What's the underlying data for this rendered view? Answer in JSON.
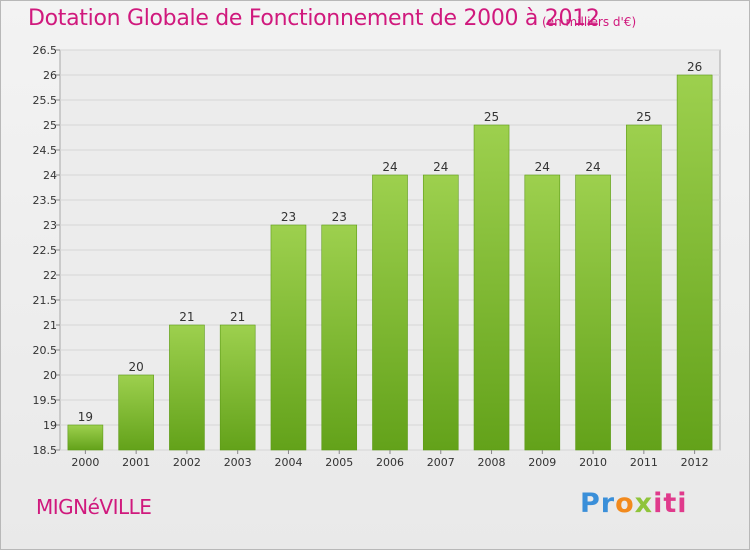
{
  "header": {
    "title": "Dotation Globale de Fonctionnement de 2000 à 2012",
    "unit": "(en milliers d'€)"
  },
  "footer": {
    "town": "MIGNéVILLE",
    "logo": [
      "Pr",
      "o",
      "x",
      "iti"
    ]
  },
  "colors": {
    "bar_top": "#9dd04e",
    "bar_bottom": "#63a21a",
    "title": "#d0197d"
  },
  "chart_data": {
    "type": "bar",
    "categories": [
      "2000",
      "2001",
      "2002",
      "2003",
      "2004",
      "2005",
      "2006",
      "2007",
      "2008",
      "2009",
      "2010",
      "2011",
      "2012"
    ],
    "values": [
      19,
      20,
      21,
      21,
      23,
      23,
      24,
      24,
      25,
      24,
      24,
      25,
      26
    ],
    "data_labels": [
      "19",
      "20",
      "21",
      "21",
      "23",
      "23",
      "24",
      "24",
      "25",
      "24",
      "24",
      "25",
      "26"
    ],
    "ylim": [
      18.5,
      26.5
    ],
    "yticks": [
      "18.5",
      "19",
      "19.5",
      "20",
      "20.5",
      "21",
      "21.5",
      "22",
      "22.5",
      "23",
      "23.5",
      "24",
      "24.5",
      "25",
      "25.5",
      "26",
      "26.5"
    ],
    "grid": true
  }
}
